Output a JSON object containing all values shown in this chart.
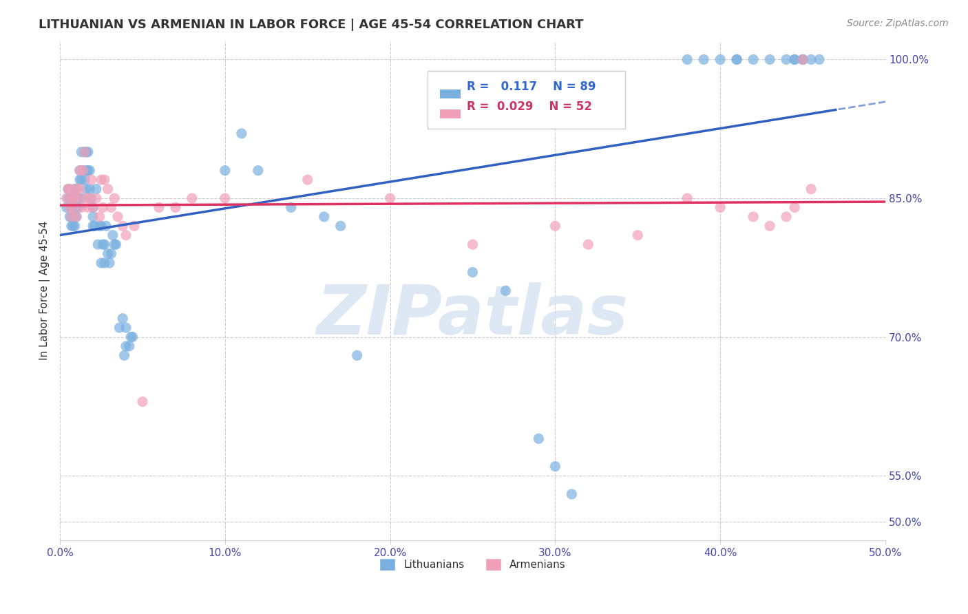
{
  "title": "LITHUANIAN VS ARMENIAN IN LABOR FORCE | AGE 45-54 CORRELATION CHART",
  "source": "Source: ZipAtlas.com",
  "ylabel": "In Labor Force | Age 45-54",
  "xlabel": "",
  "xlim": [
    0.0,
    0.5
  ],
  "ylim": [
    0.48,
    1.02
  ],
  "xticks": [
    0.0,
    0.1,
    0.2,
    0.3,
    0.4,
    0.5
  ],
  "xtick_labels": [
    "0.0%",
    "10.0%",
    "20.0%",
    "30.0%",
    "40.0%",
    "50.0%"
  ],
  "yticks": [
    0.5,
    0.55,
    0.7,
    0.85,
    1.0
  ],
  "ytick_labels": [
    "50.0%",
    "55.0%",
    "70.0%",
    "85.0%",
    "100.0%"
  ],
  "grid_color": "#cccccc",
  "background_color": "#ffffff",
  "watermark": "ZIPatlas",
  "watermark_color": "#d0dff0",
  "lithuanian_color": "#7ab0e0",
  "armenian_color": "#f0a0b8",
  "lithuanian_line_color": "#3060c0",
  "armenian_line_color": "#e03060",
  "R_lith": 0.117,
  "N_lith": 89,
  "R_arm": 0.029,
  "N_arm": 52,
  "lith_x": [
    0.004,
    0.005,
    0.005,
    0.006,
    0.006,
    0.007,
    0.007,
    0.007,
    0.008,
    0.008,
    0.008,
    0.009,
    0.009,
    0.009,
    0.01,
    0.01,
    0.01,
    0.011,
    0.011,
    0.012,
    0.012,
    0.013,
    0.013,
    0.013,
    0.014,
    0.015,
    0.015,
    0.016,
    0.016,
    0.016,
    0.017,
    0.017,
    0.018,
    0.018,
    0.019,
    0.02,
    0.02,
    0.02,
    0.021,
    0.022,
    0.023,
    0.024,
    0.025,
    0.025,
    0.026,
    0.027,
    0.027,
    0.028,
    0.029,
    0.03,
    0.031,
    0.032,
    0.033,
    0.034,
    0.036,
    0.038,
    0.039,
    0.04,
    0.04,
    0.042,
    0.043,
    0.044,
    0.1,
    0.11,
    0.12,
    0.14,
    0.16,
    0.17,
    0.18,
    0.25,
    0.27,
    0.29,
    0.3,
    0.31,
    0.38,
    0.39,
    0.4,
    0.41,
    0.41,
    0.42,
    0.43,
    0.44,
    0.445,
    0.445,
    0.45,
    0.45,
    0.45,
    0.455,
    0.46
  ],
  "lith_y": [
    0.84,
    0.85,
    0.86,
    0.83,
    0.85,
    0.82,
    0.83,
    0.84,
    0.82,
    0.84,
    0.85,
    0.82,
    0.83,
    0.86,
    0.83,
    0.84,
    0.86,
    0.84,
    0.85,
    0.87,
    0.88,
    0.85,
    0.87,
    0.9,
    0.88,
    0.87,
    0.9,
    0.86,
    0.88,
    0.9,
    0.88,
    0.9,
    0.86,
    0.88,
    0.85,
    0.82,
    0.83,
    0.84,
    0.82,
    0.86,
    0.8,
    0.82,
    0.82,
    0.78,
    0.8,
    0.78,
    0.8,
    0.82,
    0.79,
    0.78,
    0.79,
    0.81,
    0.8,
    0.8,
    0.71,
    0.72,
    0.68,
    0.71,
    0.69,
    0.69,
    0.7,
    0.7,
    0.88,
    0.92,
    0.88,
    0.84,
    0.83,
    0.82,
    0.68,
    0.77,
    0.75,
    0.59,
    0.56,
    0.53,
    1.0,
    1.0,
    1.0,
    1.0,
    1.0,
    1.0,
    1.0,
    1.0,
    1.0,
    1.0,
    1.0,
    1.0,
    1.0,
    1.0,
    1.0
  ],
  "arm_x": [
    0.004,
    0.005,
    0.006,
    0.006,
    0.007,
    0.007,
    0.008,
    0.009,
    0.01,
    0.01,
    0.011,
    0.012,
    0.012,
    0.013,
    0.014,
    0.015,
    0.016,
    0.017,
    0.018,
    0.019,
    0.02,
    0.022,
    0.024,
    0.025,
    0.026,
    0.027,
    0.029,
    0.031,
    0.033,
    0.035,
    0.038,
    0.04,
    0.045,
    0.05,
    0.06,
    0.07,
    0.08,
    0.1,
    0.15,
    0.2,
    0.25,
    0.3,
    0.32,
    0.35,
    0.38,
    0.4,
    0.42,
    0.43,
    0.44,
    0.445,
    0.45,
    0.455
  ],
  "arm_y": [
    0.85,
    0.86,
    0.84,
    0.86,
    0.83,
    0.85,
    0.84,
    0.85,
    0.83,
    0.86,
    0.85,
    0.88,
    0.86,
    0.84,
    0.88,
    0.9,
    0.85,
    0.84,
    0.85,
    0.87,
    0.84,
    0.85,
    0.83,
    0.87,
    0.84,
    0.87,
    0.86,
    0.84,
    0.85,
    0.83,
    0.82,
    0.81,
    0.82,
    0.63,
    0.84,
    0.84,
    0.85,
    0.85,
    0.87,
    0.85,
    0.8,
    0.82,
    0.8,
    0.81,
    0.85,
    0.84,
    0.83,
    0.82,
    0.83,
    0.84,
    1.0,
    0.86
  ]
}
